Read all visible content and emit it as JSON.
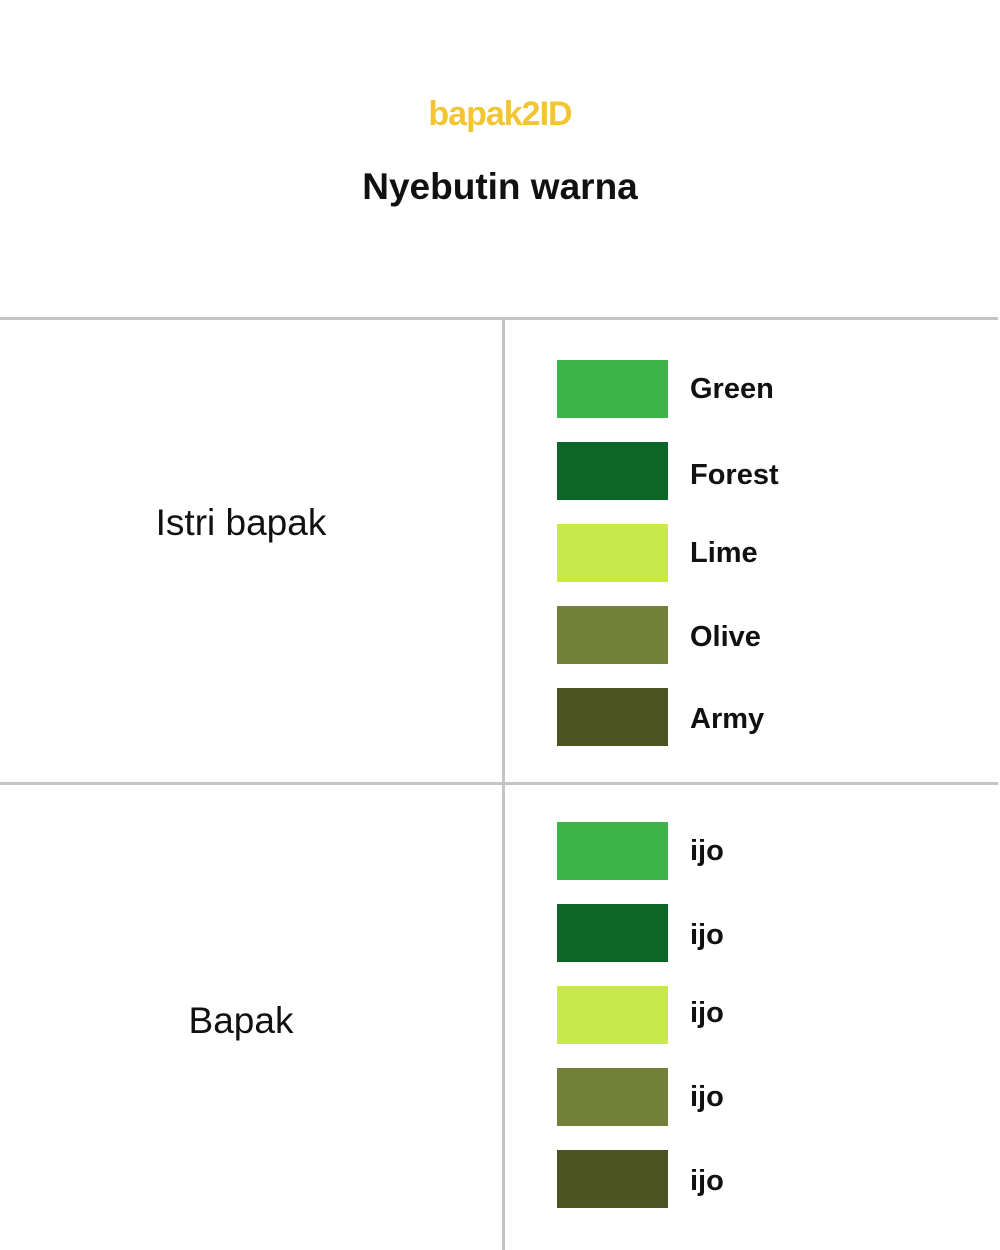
{
  "logo": "bapak2ID",
  "title": "Nyebutin warna",
  "rows": [
    {
      "label": "Istri bapak",
      "items": [
        {
          "name": "Green",
          "color": "#3db34a"
        },
        {
          "name": "Forest",
          "color": "#0b6628"
        },
        {
          "name": "Lime",
          "color": "#c9e94b"
        },
        {
          "name": "Olive",
          "color": "#738039"
        },
        {
          "name": "Army",
          "color": "#4b5320"
        }
      ]
    },
    {
      "label": "Bapak",
      "items": [
        {
          "name": "ijo",
          "color": "#3db34a"
        },
        {
          "name": "ijo",
          "color": "#0b6628"
        },
        {
          "name": "ijo",
          "color": "#c9e94b"
        },
        {
          "name": "ijo",
          "color": "#738039"
        },
        {
          "name": "ijo",
          "color": "#4b5320"
        }
      ]
    }
  ]
}
